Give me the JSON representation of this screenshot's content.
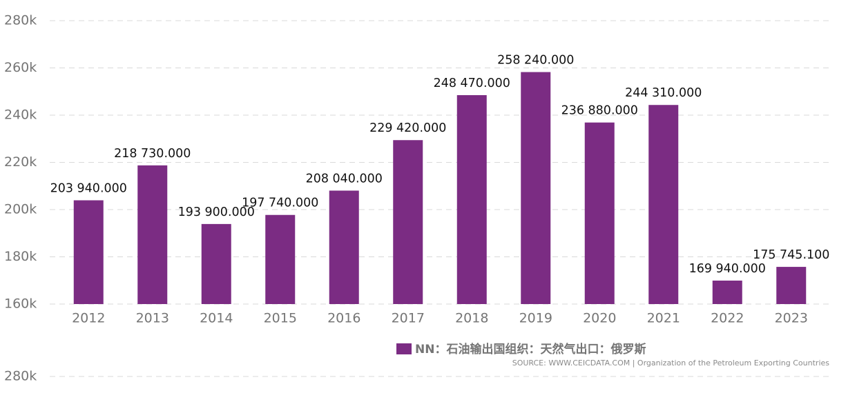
{
  "chart_data": [
    {
      "type": "bar",
      "categories": [
        "2012",
        "2013",
        "2014",
        "2015",
        "2016",
        "2017",
        "2018",
        "2019",
        "2020",
        "2021",
        "2022",
        "2023"
      ],
      "series": [
        {
          "name": "NN：石油输出国组织：天然气出口：俄罗斯",
          "color": "#7b2c83",
          "values": [
            203940,
            218730,
            193900,
            197740,
            208040,
            229420,
            248470,
            258240,
            236880,
            244310,
            169940,
            175745.1
          ],
          "value_labels": [
            "203 940.000",
            "218 730.000",
            "193 900.000",
            "197 740.000",
            "208 040.000",
            "229 420.000",
            "248 470.000",
            "258 240.000",
            "236 880.000",
            "244 310.000",
            "169 940.000",
            "175 745.100"
          ]
        }
      ],
      "ylim": [
        160000,
        280000
      ],
      "yticks": [
        {
          "value": 160000,
          "label": "160k"
        },
        {
          "value": 180000,
          "label": "180k"
        },
        {
          "value": 200000,
          "label": "200k"
        },
        {
          "value": 220000,
          "label": "220k"
        },
        {
          "value": 240000,
          "label": "240k"
        },
        {
          "value": 260000,
          "label": "260k"
        },
        {
          "value": 280000,
          "label": "280k"
        }
      ],
      "grid": true,
      "source": "SOURCE: WWW.CEICDATA.COM | Organization of the Petroleum Exporting Countries"
    },
    {
      "type": "bar",
      "yticks": [
        {
          "value": 280000,
          "label": "280k"
        }
      ],
      "grid": true
    }
  ]
}
